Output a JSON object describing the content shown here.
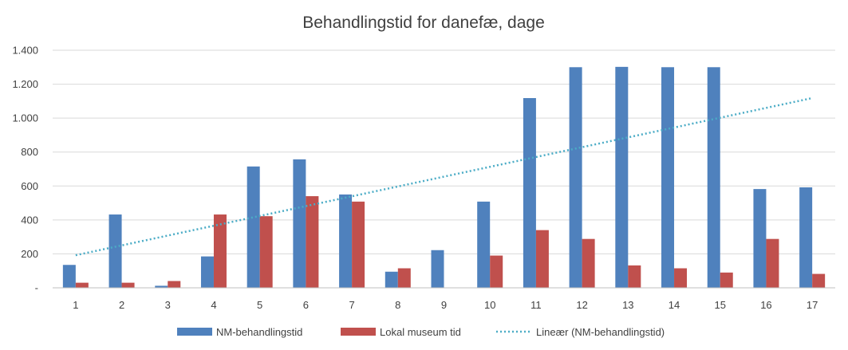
{
  "chart_data": {
    "type": "bar",
    "title": "Behandlingstid for danefæ, dage",
    "categories": [
      "1",
      "2",
      "3",
      "4",
      "5",
      "6",
      "7",
      "8",
      "9",
      "10",
      "11",
      "12",
      "13",
      "14",
      "15",
      "16",
      "17"
    ],
    "series": [
      {
        "name": "NM-behandlingstid",
        "color": "#4F81BD",
        "values": [
          135,
          432,
          12,
          185,
          715,
          757,
          550,
          95,
          222,
          508,
          1118,
          1300,
          1302,
          1300,
          1300,
          582,
          592
        ]
      },
      {
        "name": "Lokal museum tid",
        "color": "#C0504D",
        "values": [
          30,
          30,
          40,
          432,
          422,
          540,
          508,
          115,
          0,
          190,
          340,
          288,
          132,
          115,
          90,
          288,
          82
        ]
      }
    ],
    "trendline": {
      "name": "Lineær (NM-behandlingstid)",
      "type": "linear",
      "of_series": "NM-behandlingstid",
      "color": "#4BACC6",
      "style": "dotted",
      "start_value": 192,
      "end_value": 1118
    },
    "yticks": [
      "-",
      "200",
      "400",
      "600",
      "800",
      "1.000",
      "1.200",
      "1.400"
    ],
    "ylim": [
      0,
      1400
    ],
    "grid": true,
    "legend_position": "bottom",
    "xlabel": "",
    "ylabel": ""
  }
}
